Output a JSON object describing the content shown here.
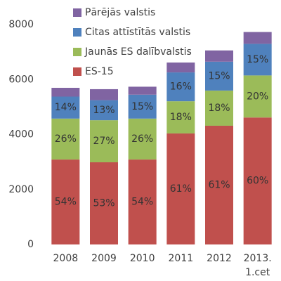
{
  "chart_data": {
    "type": "stacked_bar",
    "categories": [
      "2008",
      "2009",
      "2010",
      "2011",
      "2012",
      "2013.\n1.cet"
    ],
    "series": [
      {
        "name": "ES-15",
        "color": "#c0504d",
        "values": [
          3090,
          2990,
          3090,
          4040,
          4320,
          4620
        ],
        "labels": [
          "54%",
          "53%",
          "54%",
          "61%",
          "61%",
          "60%"
        ]
      },
      {
        "name": "Jaunās ES dalībvalstis",
        "color": "#9bbb59",
        "values": [
          1490,
          1530,
          1490,
          1170,
          1280,
          1530
        ],
        "labels": [
          "26%",
          "27%",
          "26%",
          "18%",
          "18%",
          "20%"
        ]
      },
      {
        "name": "Citas attīstītās valstis",
        "color": "#4f81bd",
        "values": [
          800,
          730,
          870,
          1050,
          1050,
          1150
        ],
        "labels": [
          "14%",
          "13%",
          "15%",
          "16%",
          "15%",
          "15%"
        ]
      },
      {
        "name": "Pārējās valstis",
        "color": "#8064a2",
        "values": [
          320,
          400,
          290,
          360,
          410,
          430
        ]
      }
    ],
    "ylim": [
      0,
      8000
    ],
    "yticks": [
      0,
      2000,
      4000,
      6000,
      8000
    ]
  }
}
